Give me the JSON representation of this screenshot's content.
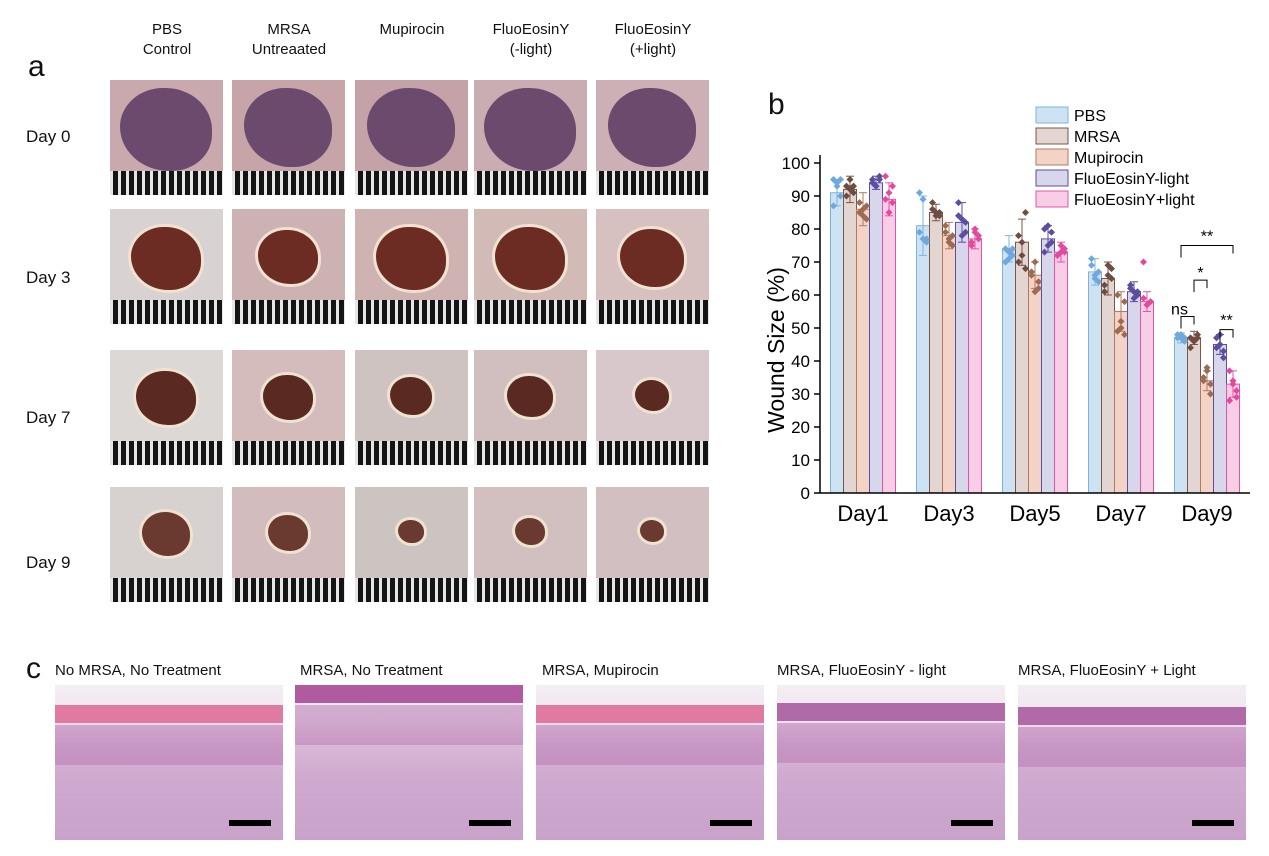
{
  "panel_a": {
    "letter": "a",
    "columns": [
      {
        "line1": "PBS",
        "line2": "Control"
      },
      {
        "line1": "MRSA",
        "line2": "Untreaated"
      },
      {
        "line1": "Mupirocin",
        "line2": ""
      },
      {
        "line1": "FluoEosinY",
        "line2": "(-light)"
      },
      {
        "line1": "FluoEosinY",
        "line2": "(+light)"
      }
    ],
    "rows": [
      "Day 0",
      "Day 3",
      "Day 7",
      "Day 9"
    ]
  },
  "panel_b": {
    "letter": "b"
  },
  "chart_data": {
    "type": "bar",
    "categories": [
      "Day1",
      "Day3",
      "Day5",
      "Day7",
      "Day9"
    ],
    "ylabel": "Wound Size (%)",
    "xlabel": "",
    "ylim": [
      0,
      100
    ],
    "yticks": [
      0,
      10,
      20,
      30,
      40,
      50,
      60,
      70,
      80,
      90,
      100
    ],
    "legend_position": "top-right",
    "series": [
      {
        "name": "PBS",
        "fill": "#cde3f3",
        "edge": "#7fb3dc",
        "dot": "#6fa8dc",
        "values": [
          91,
          81,
          74,
          67,
          47
        ],
        "errors": [
          4,
          9,
          4,
          4,
          1.5
        ]
      },
      {
        "name": "MRSA",
        "fill": "#e3d6d2",
        "edge": "#7a5548",
        "dot": "#6d4c41",
        "values": [
          92,
          85,
          76,
          65,
          47
        ],
        "errors": [
          4,
          2.5,
          7,
          5,
          2
        ]
      },
      {
        "name": "Mupirocin",
        "fill": "#f3d3c6",
        "edge": "#b07a60",
        "dot": "#9c6b52",
        "values": [
          86,
          78,
          66,
          55,
          34
        ],
        "errors": [
          5,
          4,
          4,
          6,
          3
        ]
      },
      {
        "name": "FluoEosinY-light",
        "fill": "#d8d6ea",
        "edge": "#5b4fa0",
        "dot": "#5b4e9e",
        "values": [
          94,
          82,
          77,
          61,
          45
        ],
        "errors": [
          2,
          6,
          4,
          3,
          3
        ]
      },
      {
        "name": "FluoEosinY+light",
        "fill": "#f8cde6",
        "edge": "#e255a8",
        "dot": "#e24aa0",
        "values": [
          89,
          77,
          73,
          58,
          33
        ],
        "errors": [
          5,
          3,
          3,
          3,
          4
        ]
      }
    ],
    "points": [
      [
        [
          95,
          93,
          90,
          87,
          94,
          95
        ],
        [
          91,
          89,
          76,
          79,
          77,
          77
        ],
        [
          74,
          73,
          72,
          70,
          71,
          74
        ],
        [
          69,
          66,
          64,
          71,
          65,
          67
        ],
        [
          48,
          47,
          46,
          47,
          48,
          47
        ]
      ],
      [
        [
          93,
          95,
          93,
          90,
          92,
          91
        ],
        [
          86,
          84,
          85,
          88,
          85,
          84
        ],
        [
          70,
          72,
          85,
          78,
          76,
          68
        ],
        [
          61,
          66,
          68,
          63,
          69,
          65
        ],
        [
          44,
          46,
          47,
          47,
          46,
          48
        ]
      ],
      [
        [
          88,
          84,
          87,
          85,
          86,
          83
        ],
        [
          81,
          77,
          78,
          79,
          76,
          75
        ],
        [
          67,
          61,
          64,
          66,
          70,
          62
        ],
        [
          49,
          52,
          58,
          60,
          50,
          48
        ],
        [
          34,
          37,
          30,
          35,
          38,
          33
        ]
      ],
      [
        [
          95,
          93,
          96,
          94,
          93,
          95
        ],
        [
          88,
          83,
          79,
          84,
          78,
          82
        ],
        [
          80,
          75,
          79,
          73,
          81,
          76
        ],
        [
          63,
          61,
          60,
          62,
          59,
          61
        ],
        [
          47,
          45,
          41,
          44,
          48,
          43
        ]
      ],
      [
        [
          96,
          91,
          88,
          89,
          85,
          93
        ],
        [
          76,
          79,
          77,
          75,
          80,
          78
        ],
        [
          72,
          75,
          74,
          72,
          73,
          73
        ],
        [
          70,
          57,
          58,
          59,
          57,
          58
        ],
        [
          37,
          34,
          29,
          28,
          33,
          31
        ]
      ]
    ],
    "annotations": [
      {
        "label": "ns",
        "from_series": 0,
        "to_series": 1,
        "category": "Day9"
      },
      {
        "label": "*",
        "from_series": 1,
        "to_series": 2,
        "category": "Day9"
      },
      {
        "label": "**",
        "from_series": 0,
        "to_series": 4,
        "category": "Day9"
      },
      {
        "label": "**",
        "from_series": 3,
        "to_series": 4,
        "category": "Day9"
      }
    ]
  },
  "panel_c": {
    "letter": "c",
    "titles": [
      "No MRSA, No Treatment",
      "MRSA, No Treatment",
      "MRSA, Mupirocin",
      "MRSA, FluoEosinY - light",
      "MRSA, FluoEosinY +  Light"
    ]
  }
}
